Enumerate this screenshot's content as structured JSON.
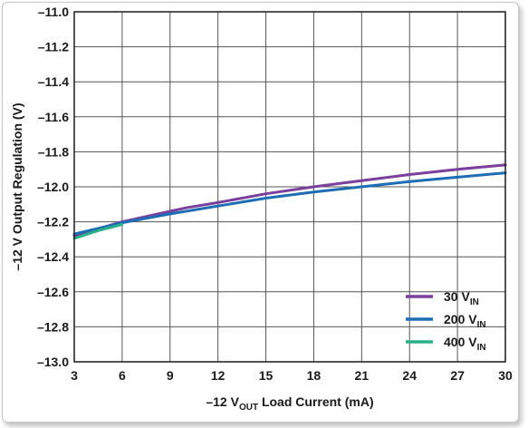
{
  "chart_data": {
    "type": "line",
    "xlabel": {
      "prefix": "–12 V",
      "sub": "OUT",
      "suffix": " Load Current (mA)"
    },
    "ylabel": "–12 V Output Regulation (V)",
    "xlim": [
      3,
      30
    ],
    "ylim": [
      -13.0,
      -11.0
    ],
    "xticks": [
      3,
      6,
      9,
      12,
      15,
      18,
      21,
      24,
      27,
      30
    ],
    "yticks": [
      -11.0,
      -11.2,
      -11.4,
      -11.6,
      -11.8,
      -12.0,
      -12.2,
      -12.4,
      -12.6,
      -12.8,
      -13.0
    ],
    "ytick_labels": [
      "–11.0",
      "–11.2",
      "–11.4",
      "–11.6",
      "–11.8",
      "–12.0",
      "–12.2",
      "–12.4",
      "–12.6",
      "–12.8",
      "–13.0"
    ],
    "grid": true,
    "legend_position": "bottom-right",
    "series": [
      {
        "name": "30 V",
        "name_sub": "IN",
        "color": "#7b3f9e",
        "x": [
          3,
          6,
          9,
          10,
          12,
          15,
          18,
          21,
          24,
          27,
          30
        ],
        "y": [
          -12.28,
          -12.2,
          -12.14,
          -12.12,
          -12.09,
          -12.04,
          -12.0,
          -11.965,
          -11.93,
          -11.9,
          -11.875
        ]
      },
      {
        "name": "200 V",
        "name_sub": "IN",
        "color": "#1d6db5",
        "x": [
          3,
          6,
          9,
          12,
          15,
          18,
          21,
          24,
          27,
          30
        ],
        "y": [
          -12.27,
          -12.205,
          -12.155,
          -12.11,
          -12.065,
          -12.03,
          -12.0,
          -11.97,
          -11.945,
          -11.92
        ]
      },
      {
        "name": "400 V",
        "name_sub": "IN",
        "color": "#2bb08a",
        "x": [
          3,
          4.5,
          6
        ],
        "y": [
          -12.295,
          -12.25,
          -12.215
        ]
      }
    ]
  }
}
